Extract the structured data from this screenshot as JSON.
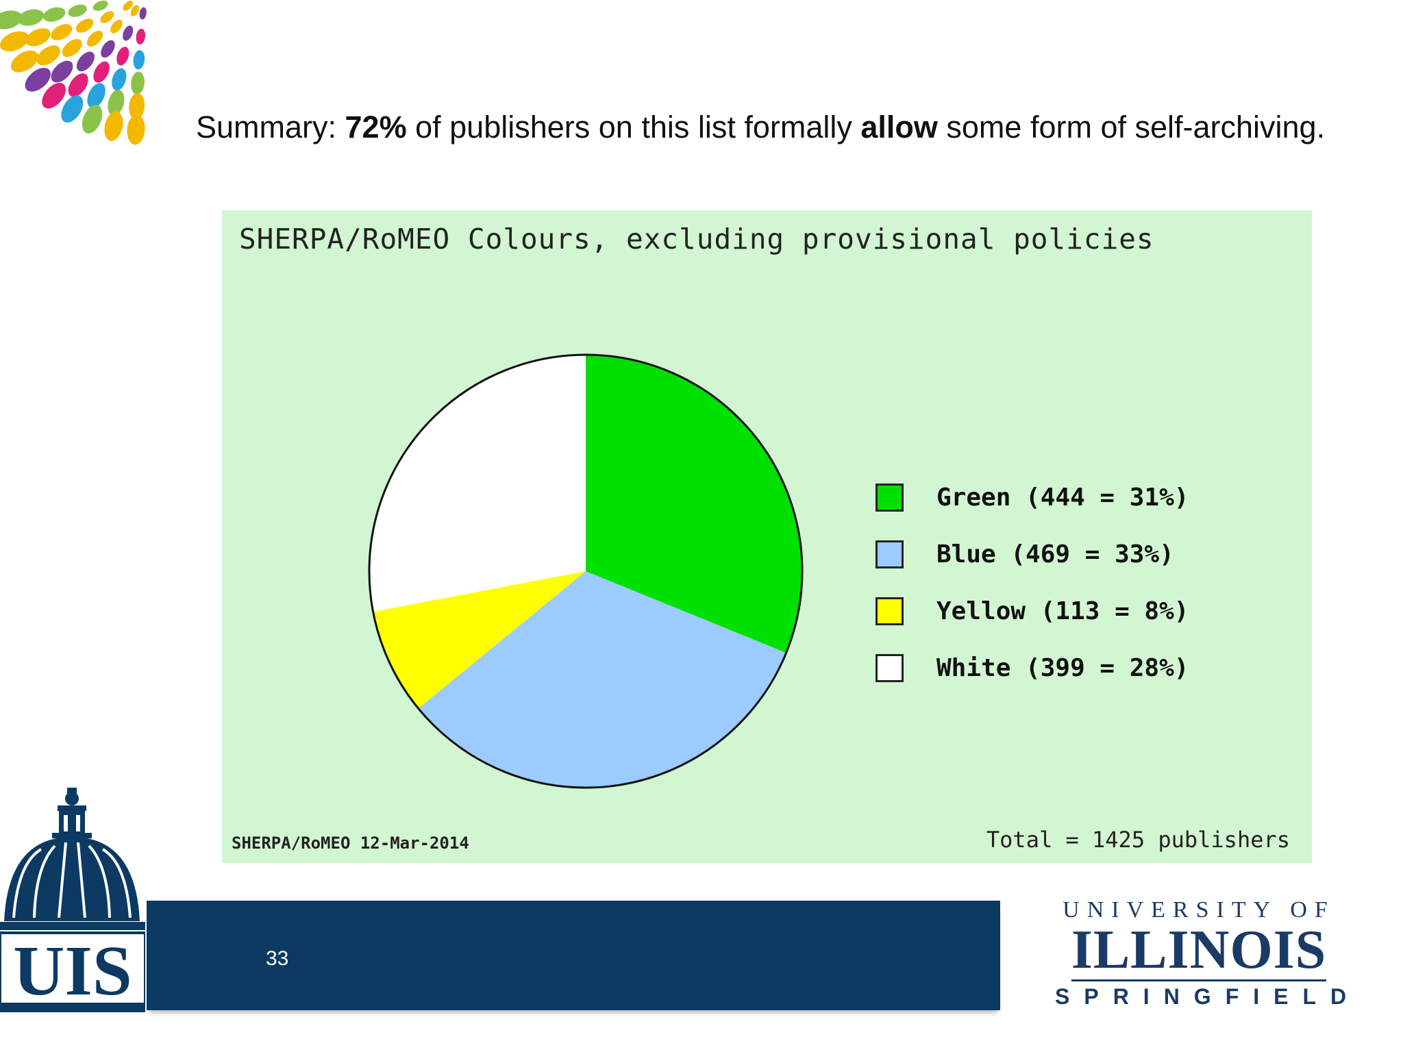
{
  "summary": {
    "prefix": "Summary: ",
    "highlight_pct": "72%",
    "middle": " of publishers on this list formally ",
    "highlight_verb": "allow",
    "suffix": " some form of self-archiving."
  },
  "chart_data": {
    "type": "pie",
    "title": "SHERPA/RoMEO Colours, excluding provisional policies",
    "source": "SHERPA/RoMEO 12-Mar-2014",
    "total_label": "Total = 1425 publishers",
    "legend_position": "right",
    "slices": [
      {
        "name": "Green",
        "count": 444,
        "percent": 31,
        "color": "#00e000",
        "label": "Green (444 = 31%)"
      },
      {
        "name": "Blue",
        "count": 469,
        "percent": 33,
        "color": "#9ccbff",
        "label": "Blue (469 = 33%)"
      },
      {
        "name": "Yellow",
        "count": 113,
        "percent": 8,
        "color": "#ffff00",
        "label": "Yellow (113 = 8%)"
      },
      {
        "name": "White",
        "count": 399,
        "percent": 28,
        "color": "#ffffff",
        "label": "White (399 = 28%)"
      }
    ]
  },
  "footer": {
    "slide_number": "33",
    "uis_logo_text": "UIS",
    "university": {
      "line1": "UNIVERSITY OF",
      "line2": "ILLINOIS",
      "line3": "SPRINGFIELD"
    }
  },
  "colors": {
    "footer_bar": "#0c3a63",
    "brand_navy": "#1b3a66",
    "chart_background": "#d2f5d2"
  }
}
